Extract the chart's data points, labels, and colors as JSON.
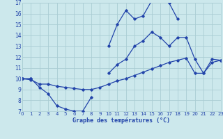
{
  "title": "Graphe des températures (°C)",
  "bg_color": "#cce8ec",
  "grid_color": "#aacdd4",
  "line_color": "#2244aa",
  "x_hours": [
    0,
    1,
    2,
    3,
    4,
    5,
    6,
    7,
    8,
    9,
    10,
    11,
    12,
    13,
    14,
    15,
    16,
    17,
    18,
    19,
    20,
    21,
    22,
    23
  ],
  "line_max": [
    10.0,
    10.0,
    9.2,
    8.6,
    7.5,
    7.2,
    7.0,
    7.0,
    8.3,
    null,
    13.0,
    15.0,
    16.3,
    15.5,
    15.8,
    17.2,
    17.3,
    17.0,
    15.5,
    null,
    null,
    null,
    null,
    null
  ],
  "line_cur": [
    10.0,
    10.0,
    null,
    null,
    null,
    null,
    null,
    null,
    null,
    null,
    10.5,
    11.3,
    11.8,
    13.0,
    13.5,
    14.3,
    13.8,
    13.0,
    13.8,
    13.8,
    11.8,
    10.5,
    11.8,
    11.7
  ],
  "line_min": [
    10.0,
    9.9,
    9.5,
    9.5,
    9.3,
    9.2,
    9.1,
    9.0,
    9.0,
    9.2,
    9.5,
    9.8,
    10.0,
    10.3,
    10.6,
    10.9,
    11.2,
    11.5,
    11.7,
    11.9,
    10.5,
    10.5,
    11.5,
    11.7
  ],
  "ylim": [
    7,
    17
  ],
  "xlim": [
    0,
    23
  ],
  "yticks": [
    7,
    8,
    9,
    10,
    11,
    12,
    13,
    14,
    15,
    16,
    17
  ],
  "xticks": [
    0,
    1,
    2,
    3,
    4,
    5,
    6,
    7,
    8,
    9,
    10,
    11,
    12,
    13,
    14,
    15,
    16,
    17,
    18,
    19,
    20,
    21,
    22,
    23
  ],
  "ylabel_fontsize": 5.5,
  "xlabel_fontsize": 5.0,
  "marker_size": 1.8,
  "line_width": 0.9
}
